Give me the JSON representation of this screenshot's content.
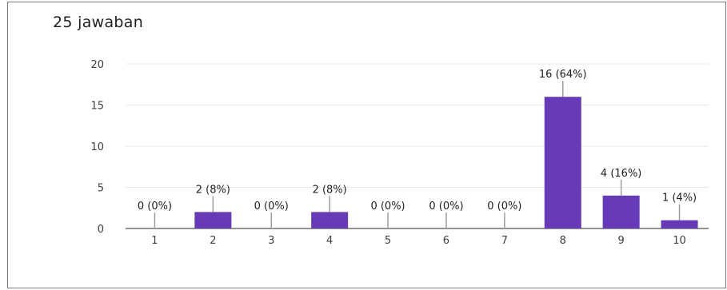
{
  "response_count": "25 jawaban",
  "colors": {
    "bar": "#673ab7",
    "grid": "#e8e8e8",
    "axis": "#555555",
    "leader": "#9e9e9e"
  },
  "chart_data": {
    "type": "bar",
    "categories": [
      "1",
      "2",
      "3",
      "4",
      "5",
      "6",
      "7",
      "8",
      "9",
      "10"
    ],
    "values": [
      0,
      2,
      0,
      2,
      0,
      0,
      0,
      16,
      4,
      1
    ],
    "data_labels": [
      "0 (0%)",
      "2 (8%)",
      "0 (0%)",
      "2 (8%)",
      "0 (0%)",
      "0 (0%)",
      "0 (0%)",
      "16 (64%)",
      "4 (16%)",
      "1 (4%)"
    ],
    "y_ticks": [
      "0",
      "5",
      "10",
      "15",
      "20"
    ],
    "ylim": [
      0,
      20
    ],
    "grid": true
  }
}
